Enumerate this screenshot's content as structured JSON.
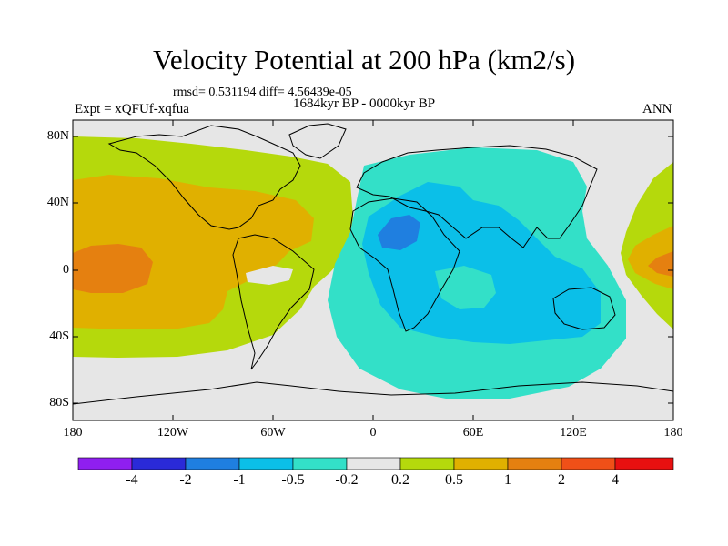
{
  "title": "Velocity Potential at 200 hPa (km2/s)",
  "stats": "rmsd= 0.531194 diff= 4.56439e-05",
  "period": "1684kyr BP - 0000kyr BP",
  "experiment": "Expt = xQFUf-xqfua",
  "season": "ANN",
  "map": {
    "lat_labels": [
      "80N",
      "40N",
      "0",
      "40S",
      "80S"
    ],
    "lon_labels": [
      "180",
      "120W",
      "60W",
      "0",
      "60E",
      "120E",
      "180"
    ]
  },
  "colorbar": {
    "colors": [
      "#8f1ff0",
      "#2a2ad8",
      "#1f7fe0",
      "#0bbfe8",
      "#33e0c8",
      "#e6e6e6",
      "#b5d90c",
      "#e0b000",
      "#e58010",
      "#f05018",
      "#e81010"
    ],
    "labels": [
      "-4",
      "-2",
      "-1",
      "-0.5",
      "-0.2",
      "0.2",
      "0.5",
      "1",
      "2",
      "4"
    ]
  }
}
